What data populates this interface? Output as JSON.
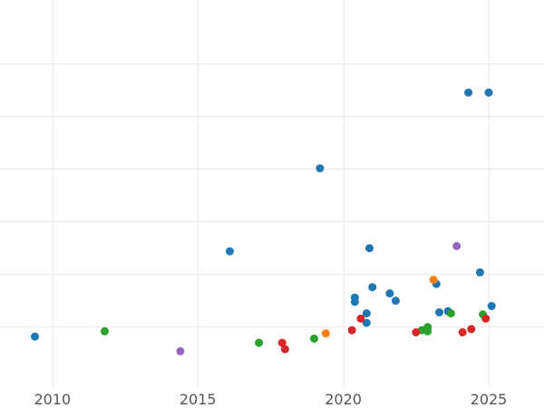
{
  "chart_data": {
    "type": "scatter",
    "title": "",
    "xlabel": "",
    "ylabel": "",
    "xlim": [
      2008.2,
      2026.9
    ],
    "ylim": [
      -9,
      360
    ],
    "x_ticks": [
      2010,
      2015,
      2020,
      2025
    ],
    "x_tick_labels": [
      "2010",
      "2015",
      "2020",
      "2025"
    ],
    "y_gridlines": [
      50,
      100,
      150,
      200,
      250,
      300
    ],
    "grid": true,
    "legend": "none",
    "series": [
      {
        "color": "#1f77b4",
        "points": [
          [
            2009.4,
            40
          ],
          [
            2016.1,
            121
          ],
          [
            2019.2,
            200
          ],
          [
            2020.4,
            77
          ],
          [
            2020.4,
            73
          ],
          [
            2020.8,
            62
          ],
          [
            2020.8,
            53
          ],
          [
            2020.9,
            124
          ],
          [
            2021.0,
            87
          ],
          [
            2021.6,
            81
          ],
          [
            2021.8,
            74
          ],
          [
            2023.2,
            90
          ],
          [
            2023.3,
            63
          ],
          [
            2023.6,
            64
          ],
          [
            2024.3,
            272
          ],
          [
            2024.7,
            101
          ],
          [
            2025.0,
            272
          ],
          [
            2025.1,
            69
          ]
        ]
      },
      {
        "color": "#2ca02c",
        "points": [
          [
            2011.8,
            45
          ],
          [
            2017.1,
            34
          ],
          [
            2019.0,
            38
          ],
          [
            2022.7,
            46
          ],
          [
            2022.9,
            45
          ],
          [
            2022.9,
            49
          ],
          [
            2023.7,
            62
          ],
          [
            2024.8,
            61
          ]
        ]
      },
      {
        "color": "#9467bd",
        "points": [
          [
            2014.4,
            26
          ],
          [
            2023.9,
            126
          ]
        ]
      },
      {
        "color": "#d62728",
        "points": [
          [
            2017.9,
            34
          ],
          [
            2018.0,
            28
          ],
          [
            2020.3,
            46
          ],
          [
            2020.6,
            57
          ],
          [
            2022.5,
            44
          ],
          [
            2024.1,
            44
          ],
          [
            2024.4,
            47
          ],
          [
            2024.9,
            57
          ]
        ]
      },
      {
        "color": "#ff7f0e",
        "points": [
          [
            2019.4,
            43
          ],
          [
            2023.1,
            94
          ]
        ]
      }
    ]
  }
}
